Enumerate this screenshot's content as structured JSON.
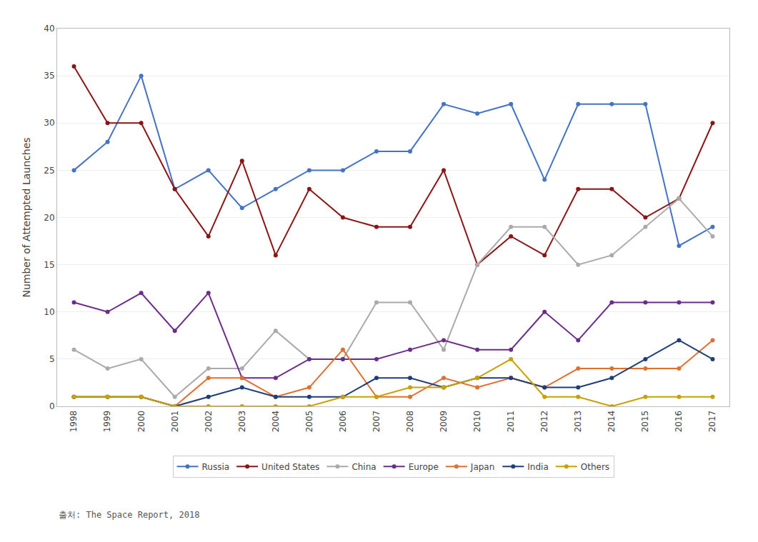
{
  "chart_data": {
    "type": "line",
    "x": [
      1998,
      1999,
      2000,
      2001,
      2002,
      2003,
      2004,
      2005,
      2006,
      2007,
      2008,
      2009,
      2010,
      2011,
      2012,
      2013,
      2014,
      2015,
      2016,
      2017
    ],
    "series": [
      {
        "name": "Russia",
        "color": "#4472C4",
        "values": [
          25,
          28,
          35,
          23,
          25,
          21,
          23,
          25,
          25,
          27,
          27,
          32,
          31,
          32,
          24,
          32,
          32,
          32,
          17,
          19
        ]
      },
      {
        "name": "United States",
        "color": "#8B1515",
        "values": [
          36,
          30,
          30,
          23,
          18,
          26,
          16,
          23,
          20,
          19,
          19,
          25,
          15,
          18,
          16,
          23,
          23,
          20,
          22,
          30
        ]
      },
      {
        "name": "China",
        "color": "#AAAAAA",
        "values": [
          6,
          4,
          5,
          1,
          4,
          4,
          8,
          5,
          5,
          11,
          11,
          6,
          15,
          19,
          19,
          15,
          16,
          19,
          22,
          18
        ]
      },
      {
        "name": "Europe",
        "color": "#6B2D8B",
        "values": [
          11,
          10,
          12,
          8,
          12,
          3,
          3,
          5,
          5,
          5,
          6,
          7,
          6,
          6,
          10,
          7,
          11,
          11,
          11,
          11
        ]
      },
      {
        "name": "Japan",
        "color": "#E07030",
        "values": [
          1,
          1,
          1,
          0,
          3,
          3,
          1,
          2,
          6,
          1,
          1,
          3,
          2,
          3,
          2,
          4,
          4,
          4,
          4,
          7
        ]
      },
      {
        "name": "India",
        "color": "#1F3D7A",
        "values": [
          1,
          1,
          1,
          0,
          1,
          2,
          1,
          1,
          1,
          3,
          3,
          2,
          3,
          3,
          2,
          2,
          3,
          5,
          7,
          5
        ]
      },
      {
        "name": "Others",
        "color": "#C8A000",
        "values": [
          1,
          1,
          1,
          0,
          0,
          0,
          0,
          0,
          1,
          1,
          2,
          2,
          3,
          5,
          1,
          1,
          0,
          1,
          1,
          1
        ]
      }
    ],
    "ylabel": "Number of Attempted Launches",
    "xlim": [
      1997.5,
      2017.5
    ],
    "xticks": [
      1998,
      1999,
      2000,
      2001,
      2002,
      2003,
      2004,
      2005,
      2006,
      2007,
      2008,
      2009,
      2010,
      2011,
      2012,
      2013,
      2014,
      2015,
      2016,
      2017
    ],
    "ylim": [
      0,
      40
    ],
    "yticks": [
      0,
      5,
      10,
      15,
      20,
      25,
      30,
      35,
      40
    ],
    "grid": "y",
    "legend": "bottom",
    "marker": "circle",
    "annotations": [
      "출처: The Space Report, 2018"
    ]
  }
}
